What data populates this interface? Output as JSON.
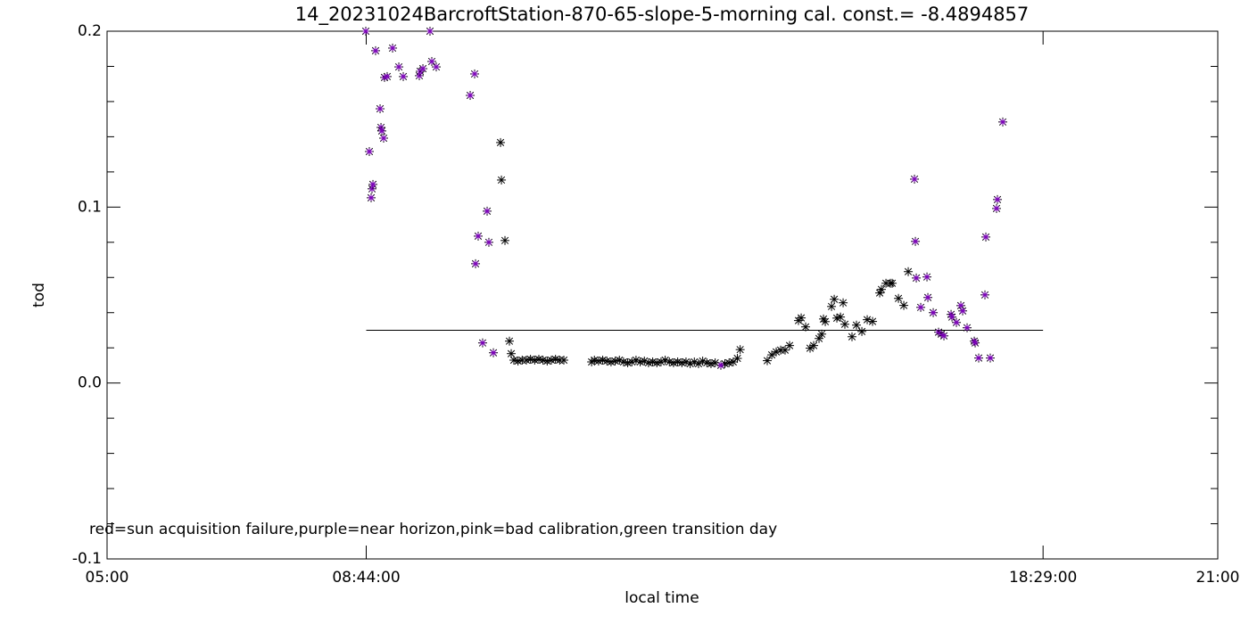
{
  "chart_data": {
    "type": "scatter",
    "title": "14_20231024BarcroftStation-870-65-slope-5-morning cal. const.= -8.4894857",
    "xlabel": "local time",
    "ylabel": "tod",
    "annotation": "red=sun acquisition failure,purple=near horizon,pink=bad calibration,green transition day",
    "xlim": [
      5,
      21
    ],
    "xticks": [
      {
        "value": 5,
        "label": "05:00"
      },
      {
        "value": 8.7333,
        "label": "08:44:00"
      },
      {
        "value": 18.4833,
        "label": "18:29:00"
      },
      {
        "value": 21,
        "label": "21:00"
      }
    ],
    "ylim": [
      -0.1,
      0.2
    ],
    "yticks": [
      -0.1,
      {
        "value": 0,
        "label": "0.0"
      },
      0.1,
      0.2
    ],
    "yminorticks": [
      -0.08,
      -0.06,
      -0.04,
      -0.02,
      0.02,
      0.04,
      0.06,
      0.08,
      0.12,
      0.14,
      0.16,
      0.18
    ],
    "hline": {
      "value": 0.03,
      "x": [
        8.7333,
        18.4833
      ],
      "color": "#000000"
    },
    "series": [
      {
        "color": "#000000",
        "x": [
          10.668,
          10.681,
          10.732,
          10.796,
          10.822,
          10.86,
          10.92,
          10.98,
          11.04,
          11.1,
          11.16,
          11.22,
          11.28,
          11.34,
          11.4,
          11.46,
          11.52,
          11.58,
          11.98,
          12.02,
          12.08,
          12.14,
          12.2,
          12.26,
          12.32,
          12.38,
          12.44,
          12.5,
          12.56,
          12.62,
          12.68,
          12.74,
          12.8,
          12.86,
          12.92,
          12.98,
          13.04,
          13.1,
          13.16,
          13.22,
          13.28,
          13.34,
          13.4,
          13.46,
          13.52,
          13.58,
          13.64,
          13.7,
          13.76,
          13.9,
          13.96,
          14.02,
          14.08,
          14.12,
          14.51,
          14.575,
          14.639,
          14.703,
          14.767,
          14.832,
          14.96,
          14.999,
          15.063,
          15.127,
          15.179,
          15.256,
          15.295,
          15.32,
          15.346,
          15.436,
          15.475,
          15.513,
          15.565,
          15.603,
          15.628,
          15.731,
          15.795,
          15.873,
          15.95,
          16.027,
          16.13,
          16.155,
          16.22,
          16.284,
          16.31,
          16.4,
          16.477,
          16.541
        ],
        "values": [
          0.1367,
          0.1154,
          0.081,
          0.0238,
          0.0167,
          0.013,
          0.0125,
          0.013,
          0.013,
          0.0135,
          0.013,
          0.0135,
          0.013,
          0.0125,
          0.013,
          0.0135,
          0.013,
          0.013,
          0.012,
          0.013,
          0.0125,
          0.013,
          0.0125,
          0.012,
          0.0125,
          0.013,
          0.012,
          0.0115,
          0.012,
          0.013,
          0.012,
          0.0125,
          0.0115,
          0.012,
          0.0115,
          0.012,
          0.013,
          0.012,
          0.0115,
          0.012,
          0.0115,
          0.012,
          0.011,
          0.012,
          0.011,
          0.0125,
          0.0115,
          0.011,
          0.0115,
          0.011,
          0.0115,
          0.012,
          0.014,
          0.019,
          0.0127,
          0.016,
          0.0177,
          0.0187,
          0.0187,
          0.0213,
          0.0355,
          0.037,
          0.0319,
          0.0198,
          0.0213,
          0.0253,
          0.0278,
          0.0364,
          0.0349,
          0.0435,
          0.0476,
          0.0369,
          0.0375,
          0.0456,
          0.0334,
          0.0263,
          0.0329,
          0.0293,
          0.036,
          0.035,
          0.0512,
          0.0532,
          0.0567,
          0.0567,
          0.0567,
          0.0481,
          0.0441,
          0.0633
        ]
      },
      {
        "color": "#8000c0",
        "x": [
          8.727,
          8.778,
          8.804,
          8.817,
          8.83,
          8.868,
          8.933,
          8.946,
          8.958,
          8.984,
          8.997,
          9.035,
          9.113,
          9.203,
          9.267,
          9.498,
          9.511,
          9.55,
          9.652,
          9.678,
          9.742,
          10.231,
          10.295,
          10.308,
          10.346,
          10.41,
          10.475,
          10.5,
          10.565,
          13.842,
          16.631,
          16.644,
          16.657,
          16.721,
          16.811,
          16.824,
          16.901,
          16.978,
          17.017,
          17.055,
          17.158,
          17.171,
          17.235,
          17.299,
          17.325,
          17.389,
          17.492,
          17.505,
          17.556,
          17.646,
          17.659,
          17.723,
          17.813,
          17.826,
          17.903
        ],
        "values": [
          0.2,
          0.1316,
          0.1053,
          0.1104,
          0.1129,
          0.1889,
          0.1559,
          0.1453,
          0.1433,
          0.1392,
          0.1737,
          0.1742,
          0.1904,
          0.1797,
          0.1742,
          0.1747,
          0.1772,
          0.1787,
          0.2,
          0.1828,
          0.1797,
          0.1635,
          0.1757,
          0.0678,
          0.0835,
          0.0228,
          0.0977,
          0.08,
          0.0172,
          0.0101,
          0.1159,
          0.0805,
          0.0597,
          0.043,
          0.0603,
          0.0486,
          0.04,
          0.0289,
          0.0278,
          0.0268,
          0.039,
          0.0375,
          0.0344,
          0.044,
          0.041,
          0.0314,
          0.0238,
          0.0228,
          0.0142,
          0.0501,
          0.083,
          0.0142,
          0.0992,
          0.1043,
          0.1484
        ]
      }
    ]
  }
}
